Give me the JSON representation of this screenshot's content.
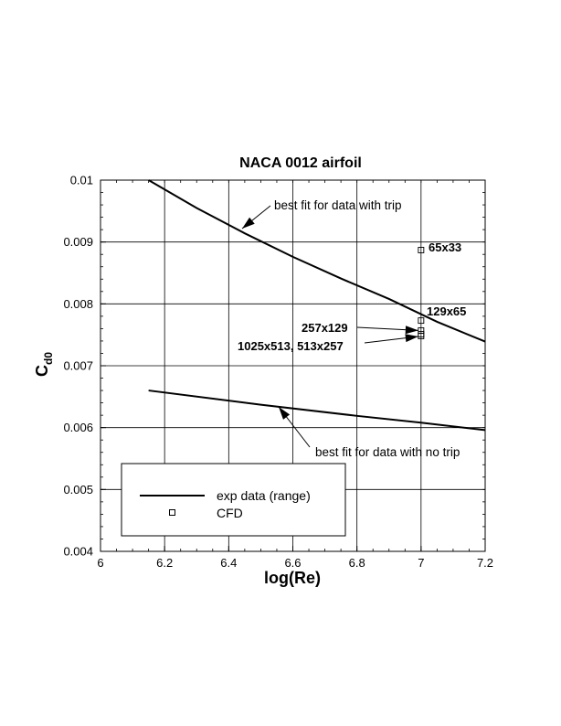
{
  "chart_data": {
    "type": "line",
    "title": "NACA 0012 airfoil",
    "xlabel": "log(Re)",
    "ylabel_main": "C",
    "ylabel_sub": "d0",
    "xlim": [
      6.0,
      7.2
    ],
    "ylim": [
      0.004,
      0.01
    ],
    "grid": true,
    "x_ticks": [
      6,
      6.2,
      6.4,
      6.6,
      6.8,
      7,
      7.2
    ],
    "x_tick_labels": [
      "6",
      "6.2",
      "6.4",
      "6.6",
      "6.8",
      "7",
      "7.2"
    ],
    "y_ticks": [
      0.004,
      0.005,
      0.006,
      0.007,
      0.008,
      0.009,
      0.01
    ],
    "y_tick_labels": [
      "0.004",
      "0.005",
      "0.006",
      "0.007",
      "0.008",
      "0.009",
      "0.01"
    ],
    "series": [
      {
        "style": "line",
        "x": [
          6.15,
          6.3,
          6.45,
          6.6,
          6.75,
          6.9,
          7.05,
          7.2
        ],
        "y": [
          0.01,
          0.00955,
          0.00914,
          0.00876,
          0.00841,
          0.00808,
          0.00771,
          0.00739
        ]
      },
      {
        "style": "line",
        "x": [
          6.15,
          6.5,
          6.8,
          7.0,
          7.2
        ],
        "y": [
          0.0066,
          0.00637,
          0.00619,
          0.00608,
          0.00596
        ]
      },
      {
        "name": "CFD",
        "style": "marker",
        "x": [
          7.0,
          7.0,
          7.0,
          7.0,
          7.0
        ],
        "y": [
          0.00887,
          0.00773,
          0.00757,
          0.00751,
          0.00748
        ]
      }
    ],
    "annotations": [
      {
        "text": "best fit for data with trip",
        "bold": false
      },
      {
        "text": "best fit for data with no trip",
        "bold": false
      },
      {
        "text": "65x33",
        "bold": true
      },
      {
        "text": "129x65",
        "bold": true
      },
      {
        "text": "257x129",
        "bold": true
      },
      {
        "text": "1025x513, 513x257",
        "bold": true
      }
    ],
    "legend": {
      "position": "bottom-left",
      "entries": [
        {
          "label": "exp data (range)",
          "symbol": "line"
        },
        {
          "label": "CFD",
          "symbol": "square"
        }
      ]
    }
  }
}
